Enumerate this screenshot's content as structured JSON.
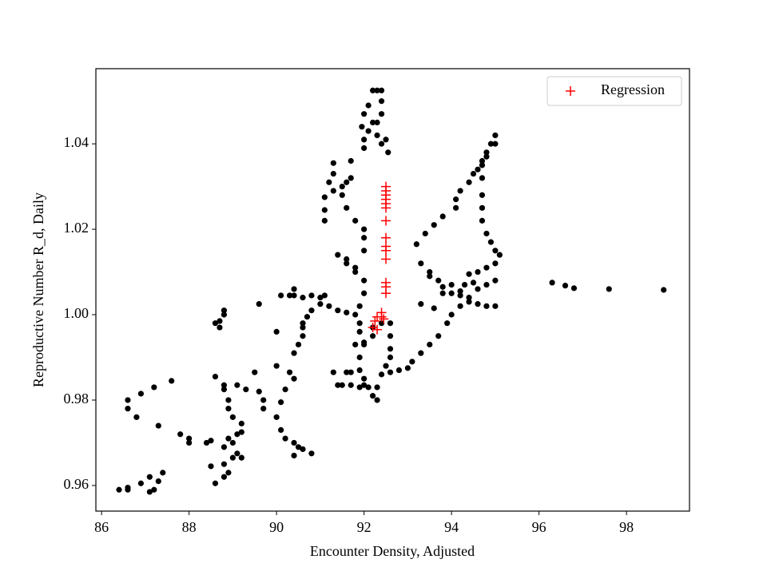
{
  "chart_data": {
    "type": "scatter",
    "xlabel": "Encounter Density, Adjusted",
    "ylabel": "Reproductive Number R_d, Daily",
    "xlim": [
      85.87,
      99.44
    ],
    "ylim": [
      0.954,
      1.0576
    ],
    "xticks": [
      86,
      88,
      90,
      92,
      94,
      96,
      98
    ],
    "yticks": [
      0.96,
      0.98,
      {
        "value": 1,
        "label": "1.00"
      },
      1.02,
      1.04
    ],
    "grid": false,
    "legend": "upper right",
    "series": [
      {
        "color": "#000000",
        "marker": "circle",
        "x": [
          86.4,
          86.6,
          86.6,
          86.9,
          87.1,
          87.1,
          87.2,
          87.3,
          87.4,
          87.3,
          86.8,
          86.6,
          86.6,
          86.9,
          87.2,
          87.6,
          87.8,
          88.0,
          88.0,
          88.4,
          88.5,
          88.5,
          88.6,
          88.8,
          88.8,
          88.9,
          89.0,
          89.1,
          89.2,
          88.9,
          88.8,
          89.0,
          89.1,
          89.2,
          89.2,
          89.0,
          88.9,
          88.9,
          88.8,
          88.8,
          88.6,
          89.1,
          89.3,
          89.5,
          89.6,
          89.7,
          89.7,
          90.0,
          90.1,
          90.2,
          90.4,
          90.5,
          90.6,
          90.8,
          90.4,
          90.1,
          90.2,
          90.4,
          90.3,
          90.0,
          90.4,
          90.5,
          90.6,
          90.6,
          90.6,
          90.7,
          90.8,
          90.0,
          89.6,
          88.6,
          88.7,
          88.7,
          88.8,
          88.8,
          90.1,
          90.3,
          90.4,
          90.4,
          90.6,
          90.8,
          91.0,
          91.1,
          91.0,
          91.2,
          91.4,
          91.6,
          91.8,
          91.9,
          91.9,
          92.0,
          91.9,
          91.9,
          92.0,
          92.1,
          92.2,
          92.3,
          92.3,
          92.4,
          92.5,
          92.6,
          92.6,
          92.6,
          92.6,
          92.4,
          92.2,
          92.2,
          92.0,
          91.8,
          91.3,
          91.4,
          91.5,
          91.7,
          91.9,
          92.0,
          91.7,
          91.6,
          91.9,
          92.0,
          92.0,
          91.8,
          91.6,
          91.4,
          91.6,
          91.8,
          92.0,
          92.0,
          92.0,
          91.8,
          91.6,
          91.5,
          91.6,
          91.7,
          91.5,
          91.3,
          91.3,
          91.3,
          91.1,
          91.1,
          91.1,
          91.2,
          91.7,
          92.0,
          91.95,
          92.1,
          92.2,
          92.3,
          92.4,
          92.4,
          92.4,
          92.3,
          92.3,
          92.4,
          92.5,
          92.55,
          92.0,
          92.1,
          92.2,
          92.0,
          92.6,
          92.8,
          93.0,
          93.1,
          93.3,
          93.5,
          93.7,
          93.9,
          94.0,
          94.2,
          94.4,
          94.6,
          94.8,
          95.0,
          94.8,
          94.6,
          94.4,
          94.2,
          94.0,
          93.8,
          93.7,
          93.5,
          93.5,
          93.3,
          93.2,
          93.4,
          93.6,
          93.8,
          94.1,
          94.1,
          94.2,
          94.4,
          94.5,
          94.6,
          94.7,
          94.8,
          94.9,
          95.0,
          95.0,
          94.8,
          94.7,
          94.7,
          94.7,
          94.7,
          94.7,
          94.8,
          94.9,
          95.0,
          95.1,
          95.0,
          94.8,
          94.6,
          94.4,
          95.0,
          94.5,
          94.3,
          94.0,
          93.8,
          93.6,
          93.3,
          94.2,
          96.3,
          96.6,
          96.8,
          97.6,
          98.85
        ],
        "values": [
          0.959,
          0.959,
          0.9595,
          0.9605,
          0.962,
          0.9585,
          0.959,
          0.961,
          0.963,
          0.974,
          0.976,
          0.978,
          0.98,
          0.9815,
          0.983,
          0.9845,
          0.972,
          0.971,
          0.97,
          0.97,
          0.9705,
          0.9645,
          0.9605,
          0.962,
          0.965,
          0.963,
          0.9665,
          0.9675,
          0.9665,
          0.971,
          0.969,
          0.97,
          0.972,
          0.9725,
          0.9745,
          0.976,
          0.978,
          0.98,
          0.9825,
          0.9835,
          0.9855,
          0.9835,
          0.9825,
          0.9865,
          0.982,
          0.98,
          0.978,
          0.976,
          0.973,
          0.971,
          0.97,
          0.969,
          0.9685,
          0.9675,
          0.967,
          0.9795,
          0.9825,
          0.985,
          0.9865,
          0.988,
          0.991,
          0.993,
          0.995,
          0.997,
          0.998,
          0.9995,
          1.001,
          0.996,
          1.0025,
          0.998,
          0.9985,
          0.997,
          1.0,
          1.001,
          1.0045,
          1.0045,
          1.006,
          1.0045,
          1.004,
          1.0045,
          1.004,
          1.0045,
          1.0025,
          1.002,
          1.001,
          1.0005,
          1.0,
          0.998,
          0.996,
          0.993,
          0.99,
          0.987,
          0.985,
          0.983,
          0.981,
          0.98,
          0.983,
          0.986,
          0.988,
          0.99,
          0.992,
          0.995,
          0.998,
          0.998,
          0.997,
          0.995,
          0.9935,
          0.993,
          0.9865,
          0.9835,
          0.9835,
          0.9835,
          0.983,
          0.9835,
          0.9865,
          0.9865,
          1.002,
          1.005,
          1.008,
          1.01,
          1.012,
          1.014,
          1.013,
          1.011,
          1.015,
          1.018,
          1.02,
          1.022,
          1.025,
          1.028,
          1.031,
          1.032,
          1.03,
          1.029,
          1.033,
          1.0355,
          1.0275,
          1.0245,
          1.022,
          1.031,
          1.036,
          1.047,
          1.044,
          1.049,
          1.0525,
          1.0525,
          1.0525,
          1.05,
          1.047,
          1.045,
          1.042,
          1.04,
          1.041,
          1.038,
          1.041,
          1.043,
          1.045,
          1.039,
          0.9865,
          0.987,
          0.9875,
          0.989,
          0.991,
          0.993,
          0.995,
          0.998,
          1.0,
          1.002,
          1.004,
          1.006,
          1.007,
          1.002,
          1.002,
          1.0025,
          1.003,
          1.0045,
          1.005,
          1.0065,
          1.008,
          1.009,
          1.01,
          1.012,
          1.0165,
          1.019,
          1.021,
          1.023,
          1.025,
          1.027,
          1.029,
          1.031,
          1.033,
          1.034,
          1.036,
          1.038,
          1.04,
          1.042,
          1.04,
          1.037,
          1.035,
          1.032,
          1.028,
          1.025,
          1.022,
          1.019,
          1.017,
          1.015,
          1.014,
          1.012,
          1.011,
          1.01,
          1.0095,
          1.008,
          1.0075,
          1.007,
          1.007,
          1.005,
          1.0015,
          1.0025,
          1.0055,
          1.0075,
          1.0068,
          1.0062,
          1.006,
          1.0058
        ]
      },
      {
        "name": "Regression",
        "color": "#ff0000",
        "marker": "plus",
        "x": [
          92.5,
          92.5,
          92.5,
          92.5,
          92.5,
          92.5,
          92.5,
          92.5,
          92.5,
          92.5,
          92.5,
          92.5,
          92.5,
          92.5,
          92.4,
          92.4,
          92.3,
          92.25,
          92.2,
          92.3,
          92.45
        ],
        "values": [
          1.03,
          1.029,
          1.028,
          1.027,
          1.026,
          1.025,
          1.022,
          1.018,
          1.016,
          1.015,
          1.013,
          1.0075,
          1.0065,
          1.005,
          1.0005,
          0.9995,
          0.9995,
          0.9985,
          0.997,
          0.9965,
          0.999
        ]
      }
    ]
  }
}
